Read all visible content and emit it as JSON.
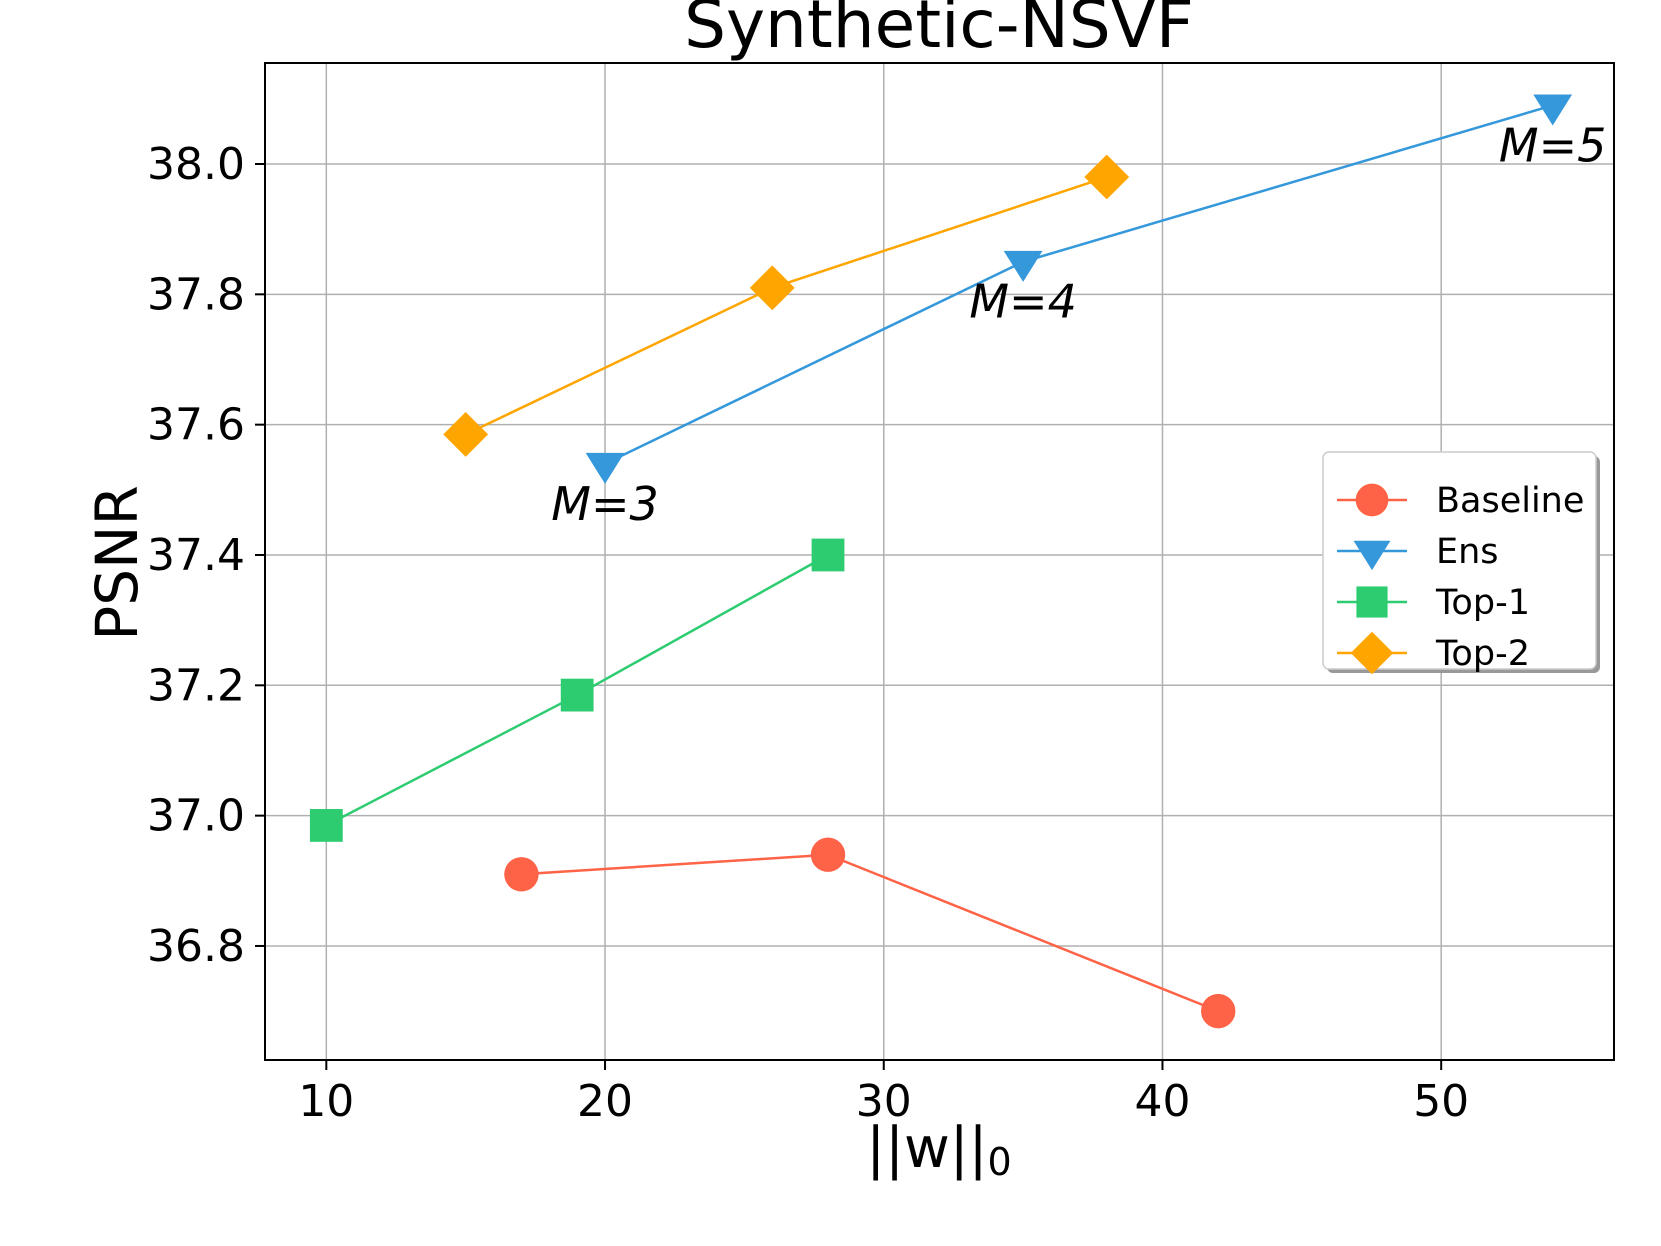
{
  "chart_data": {
    "type": "line",
    "title": "Synthetic-NSVF",
    "xlabel": "||w||",
    "xlabel_sub": "0",
    "ylabel": "PSNR",
    "xlim": [
      7.8,
      56.2
    ],
    "ylim": [
      36.625,
      38.155
    ],
    "xticks": [
      10,
      20,
      30,
      40,
      50
    ],
    "xtick_labels": [
      "10",
      "20",
      "30",
      "40",
      "50"
    ],
    "yticks": [
      36.8,
      37.0,
      37.2,
      37.4,
      37.6,
      37.8,
      38.0
    ],
    "ytick_labels": [
      "36.8",
      "37.0",
      "37.2",
      "37.4",
      "37.6",
      "37.8",
      "38.0"
    ],
    "grid": true,
    "legend_position": "center-right",
    "series": [
      {
        "name": "Baseline",
        "marker": "circle",
        "color": "#FF6347",
        "x": [
          17,
          28,
          42
        ],
        "y": [
          36.91,
          36.94,
          36.7
        ]
      },
      {
        "name": "Ens",
        "marker": "triangle-down",
        "color": "#3498DB",
        "x": [
          20,
          35,
          54
        ],
        "y": [
          37.54,
          37.85,
          38.09
        ]
      },
      {
        "name": "Top-1",
        "marker": "square",
        "color": "#2ECC71",
        "x": [
          10,
          19,
          28
        ],
        "y": [
          36.985,
          37.185,
          37.4
        ]
      },
      {
        "name": "Top-2",
        "marker": "diamond",
        "color": "#FFA500",
        "x": [
          15,
          26,
          38
        ],
        "y": [
          37.585,
          37.81,
          37.98
        ]
      }
    ],
    "annotations": [
      {
        "text": "M=3",
        "x": 20,
        "y": 37.54
      },
      {
        "text": "M=4",
        "x": 35,
        "y": 37.85
      },
      {
        "text": "M=5",
        "x": 54,
        "y": 38.09
      }
    ]
  }
}
